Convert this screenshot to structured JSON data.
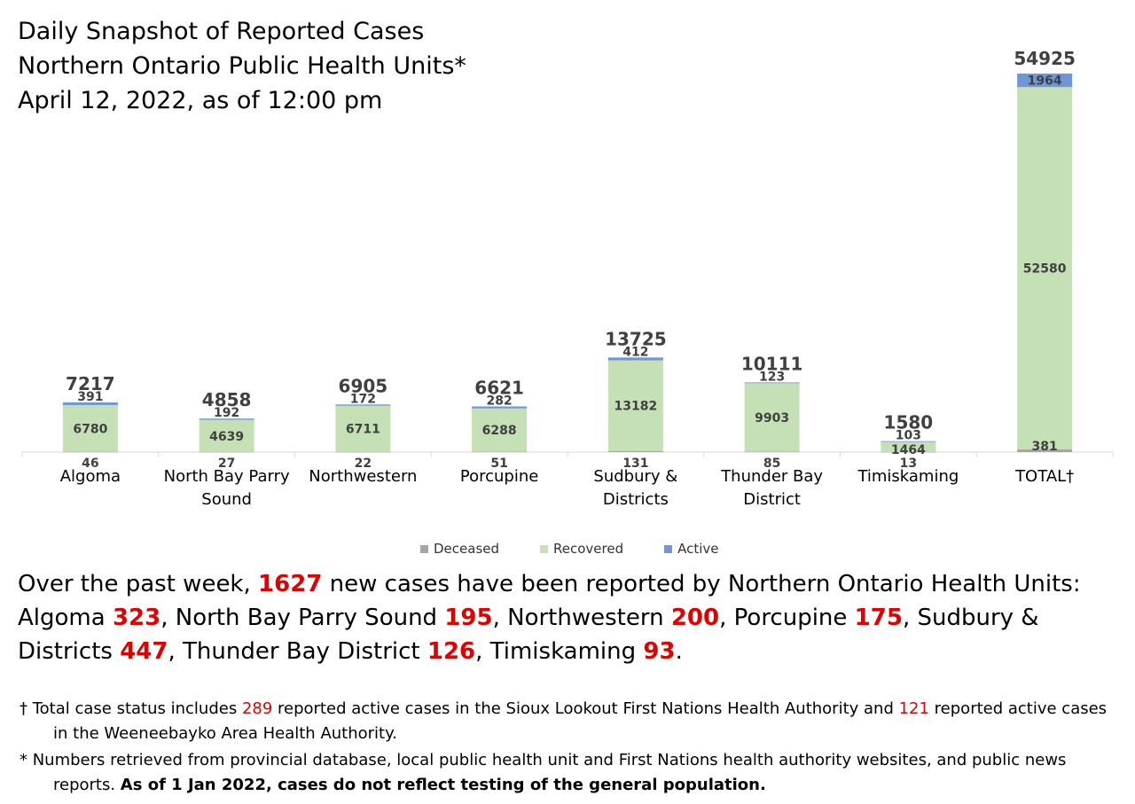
{
  "title": {
    "line1": "Daily Snapshot of Reported Cases",
    "line2": "Northern Ontario Public Health Units*",
    "line3": "April 12, 2022, as of 12:00 pm"
  },
  "colors": {
    "deceased": "#a5a5a5",
    "recovered": "#c5e0b4",
    "active": "#6f96d8",
    "highlight": "#e00000"
  },
  "chart_data": {
    "type": "bar",
    "stacked": true,
    "categories": [
      [
        "Algoma"
      ],
      [
        "North Bay Parry",
        "Sound"
      ],
      [
        "Northwestern"
      ],
      [
        "Porcupine"
      ],
      [
        "Sudbury &",
        "Districts"
      ],
      [
        "Thunder Bay",
        "District"
      ],
      [
        "Timiskaming"
      ],
      [
        "TOTAL†"
      ]
    ],
    "series": [
      {
        "name": "Deceased",
        "values": [
          46,
          27,
          22,
          51,
          131,
          85,
          13,
          381
        ]
      },
      {
        "name": "Recovered",
        "values": [
          6780,
          4639,
          6711,
          6288,
          13182,
          9903,
          1464,
          52580
        ]
      },
      {
        "name": "Active",
        "values": [
          391,
          192,
          172,
          282,
          412,
          123,
          103,
          1964
        ]
      }
    ],
    "totals": [
      7217,
      4858,
      6905,
      6621,
      13725,
      10111,
      1580,
      54925
    ],
    "ylim": [
      0,
      54925
    ],
    "grid": false,
    "legend_position": "bottom"
  },
  "summary": {
    "p1": "Over the past week, ",
    "n_total": "1627",
    "p2": " new cases have been reported by Northern Ontario Health Units: Algoma ",
    "n_algoma": "323",
    "p3": ", North Bay Parry Sound ",
    "n_nbps": "195",
    "p4": ", Northwestern ",
    "n_nw": "200",
    "p5": ", Porcupine ",
    "n_porc": "175",
    "p6": ", Sudbury & Districts ",
    "n_sud": "447",
    "p7": ", Thunder Bay District ",
    "n_tb": "126",
    "p8": ", Timiskaming ",
    "n_tim": "93",
    "p9": "."
  },
  "notes": {
    "n1_a": "† Total case status includes ",
    "n1_num1": "289",
    "n1_b": " reported active cases in the Sioux Lookout First Nations Health Authority and ",
    "n1_num2": "121",
    "n1_c": " reported active cases in the Weeneebayko Area Health Authority.",
    "n2_a": "* Numbers retrieved from provincial database, local public health unit and First Nations health authority websites, and public news reports. ",
    "n2_bold": "As of 1 Jan 2022, cases do not reflect testing of the general population."
  }
}
